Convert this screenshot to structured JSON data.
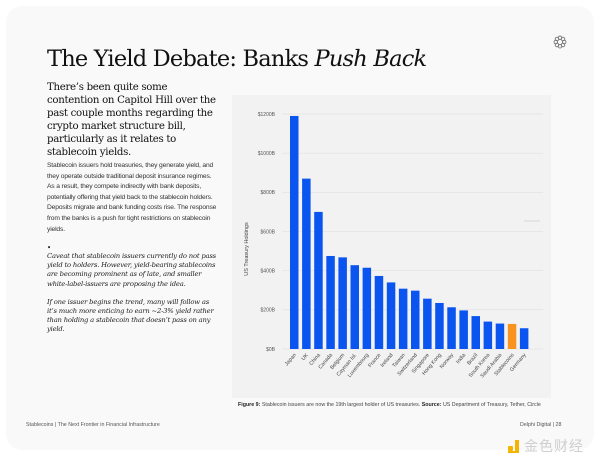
{
  "page": {
    "title_main": "The Yield Debate: Banks ",
    "title_italic": "Push Back",
    "lead": "There’s been quite some contention on Capitol Hill over the past couple months regarding the crypto market structure bill, particularly as it relates to stablecoin yields.",
    "body": "Stablecoin issuers hold treasuries, they generate yield, and they operate outside traditional deposit insurance regimes. As a result, they compete indirectly with bank deposits, potentially offering that yield back to the stablecoin holders. Deposits migrate and bank funding costs rise. The response from the banks is a push for tight restrictions on stablecoin yields.",
    "bullet": "•",
    "note1": "Caveat that stablecoin issuers currently do not pass yield to holders. However, yield-bearing stablecoins are becoming prominent as of late, and smaller white-label-issuers are proposing the idea.",
    "note2": "If one issuer begins the trend, many will follow as it’s much more enticing to earn ~2-3% yield rather than holding a stablecoin that doesn’t pass on any yield.",
    "caption_label": "Figure 9:",
    "caption_text": " Stablecoin issuers are now the 19th largest holder of US treasuries. ",
    "caption_source_label": "Source:",
    "caption_source": " US Department of Treasury, Tether, Circle",
    "footer_left": "Stablecoins | The Next Frontier in Financial Infrastructure",
    "footer_right": "Delphi Digital  |  28",
    "watermark": "金色财经",
    "logo_icon": "flower-ring-icon"
  },
  "colors": {
    "bar": "#0a55f0",
    "highlight": "#f7931e",
    "grid": "#dcdcdc"
  },
  "chart_data": {
    "type": "bar",
    "title": "",
    "xlabel": "",
    "ylabel": "US Treasury Holdings",
    "ylim": [
      0,
      1200
    ],
    "yticks": [
      0,
      200,
      400,
      600,
      800,
      1000,
      1200
    ],
    "ytick_labels": [
      "$0B",
      "$200B",
      "$400B",
      "$600B",
      "$800B",
      "$1000B",
      "$1200B"
    ],
    "grid": true,
    "categories": [
      "Japan",
      "UK",
      "China",
      "Canada",
      "Belgium",
      "Cayman Isl.",
      "Luxembourg",
      "France",
      "Ireland",
      "Taiwan",
      "Switzerland",
      "Singapore",
      "Hong Kong",
      "Norway",
      "India",
      "Brazil",
      "South Korea",
      "Saudi Arabia",
      "Stablecoins",
      "Germany"
    ],
    "values": [
      1190,
      870,
      700,
      475,
      468,
      428,
      415,
      373,
      340,
      308,
      298,
      257,
      235,
      213,
      197,
      168,
      140,
      130,
      128,
      106
    ],
    "highlight": "Stablecoins"
  }
}
